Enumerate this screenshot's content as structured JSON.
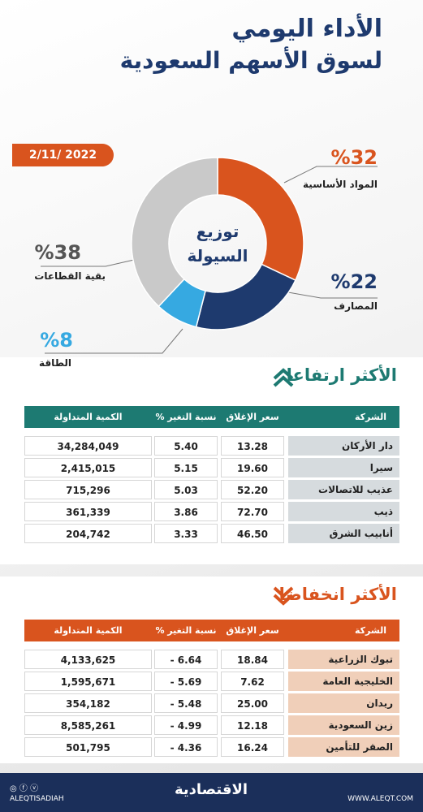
{
  "header": {
    "line1": "الأداء اليومي",
    "line2": "لسوق الأسهم السعودية",
    "date": "2/11/ 2022"
  },
  "chart_data": {
    "type": "pie",
    "title": "توزيع السيولة",
    "categories": [
      "المواد الأساسية",
      "المصارف",
      "الطاقة",
      "بقية القطاعات"
    ],
    "values": [
      32,
      22,
      8,
      38
    ],
    "value_labels": [
      "%32",
      "%22",
      "%8",
      "%38"
    ],
    "colors": [
      "#d9541e",
      "#1e3a6e",
      "#36a9e1",
      "#c9c9c9"
    ]
  },
  "gainers": {
    "title": "الأكثر ارتفاعا",
    "header": [
      "الشركة",
      "سعر الإغلاق",
      "نسبة التغير %",
      "الكمية المتداولة"
    ],
    "rows": [
      [
        "دار الأركان",
        "13.28",
        "5.40",
        "34,284,049"
      ],
      [
        "سيرا",
        "19.60",
        "5.15",
        "2,415,015"
      ],
      [
        "عذيب للاتصالات",
        "52.20",
        "5.03",
        "715,296"
      ],
      [
        "ذيب",
        "72.70",
        "3.86",
        "361,339"
      ],
      [
        "أنابيب الشرق",
        "46.50",
        "3.33",
        "204,742"
      ]
    ]
  },
  "losers": {
    "title": "الأكثر انخفاضا",
    "header": [
      "الشركة",
      "سعر الإغلاق",
      "نسبة التغير %",
      "الكمية المتداولة"
    ],
    "rows": [
      [
        "تبوك الزراعية",
        "18.84",
        "- 6.64",
        "4,133,625"
      ],
      [
        "الخليجية العامة",
        "7.62",
        "- 5.69",
        "1,595,671"
      ],
      [
        "ريدان",
        "25.00",
        "- 5.48",
        "354,182"
      ],
      [
        "زين السعودية",
        "12.18",
        "- 4.99",
        "8,585,261"
      ],
      [
        "الصقر للتأمين",
        "16.24",
        "- 4.36",
        "501,795"
      ]
    ]
  },
  "footer": {
    "handle": "ALEQTISADIAH",
    "logo": "الاقتصادية",
    "site": "WWW.ALEQT.COM"
  }
}
